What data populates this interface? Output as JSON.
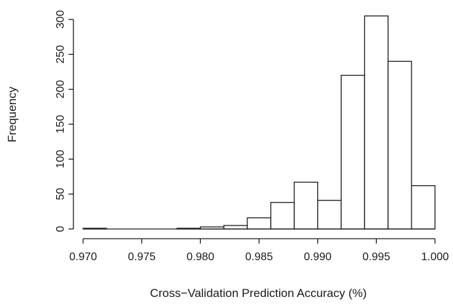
{
  "chart_data": {
    "type": "bar",
    "title": "",
    "xlabel": "Cross−Validation Prediction Accuracy (%)",
    "ylabel": "Frequency",
    "xlim": [
      0.97,
      1.0
    ],
    "ylim": [
      0,
      300
    ],
    "bins": [
      {
        "start": 0.97,
        "end": 0.972,
        "count": 1
      },
      {
        "start": 0.972,
        "end": 0.974,
        "count": 0
      },
      {
        "start": 0.974,
        "end": 0.976,
        "count": 0
      },
      {
        "start": 0.976,
        "end": 0.978,
        "count": 0
      },
      {
        "start": 0.978,
        "end": 0.98,
        "count": 1
      },
      {
        "start": 0.98,
        "end": 0.982,
        "count": 3
      },
      {
        "start": 0.982,
        "end": 0.984,
        "count": 5
      },
      {
        "start": 0.984,
        "end": 0.986,
        "count": 16
      },
      {
        "start": 0.986,
        "end": 0.988,
        "count": 38
      },
      {
        "start": 0.988,
        "end": 0.99,
        "count": 67
      },
      {
        "start": 0.99,
        "end": 0.992,
        "count": 41
      },
      {
        "start": 0.992,
        "end": 0.994,
        "count": 220
      },
      {
        "start": 0.994,
        "end": 0.996,
        "count": 305
      },
      {
        "start": 0.996,
        "end": 0.998,
        "count": 240
      },
      {
        "start": 0.998,
        "end": 1.0,
        "count": 62
      }
    ],
    "x_ticks": [
      "0.970",
      "0.975",
      "0.980",
      "0.985",
      "0.990",
      "0.995",
      "1.000"
    ],
    "y_ticks": [
      "0",
      "50",
      "100",
      "150",
      "200",
      "250",
      "300"
    ],
    "grid": false,
    "legend": "none",
    "colors": {
      "bar_fill": "#ffffff",
      "bar_stroke": "#1a1a1a",
      "axis": "#1a1a1a"
    }
  }
}
